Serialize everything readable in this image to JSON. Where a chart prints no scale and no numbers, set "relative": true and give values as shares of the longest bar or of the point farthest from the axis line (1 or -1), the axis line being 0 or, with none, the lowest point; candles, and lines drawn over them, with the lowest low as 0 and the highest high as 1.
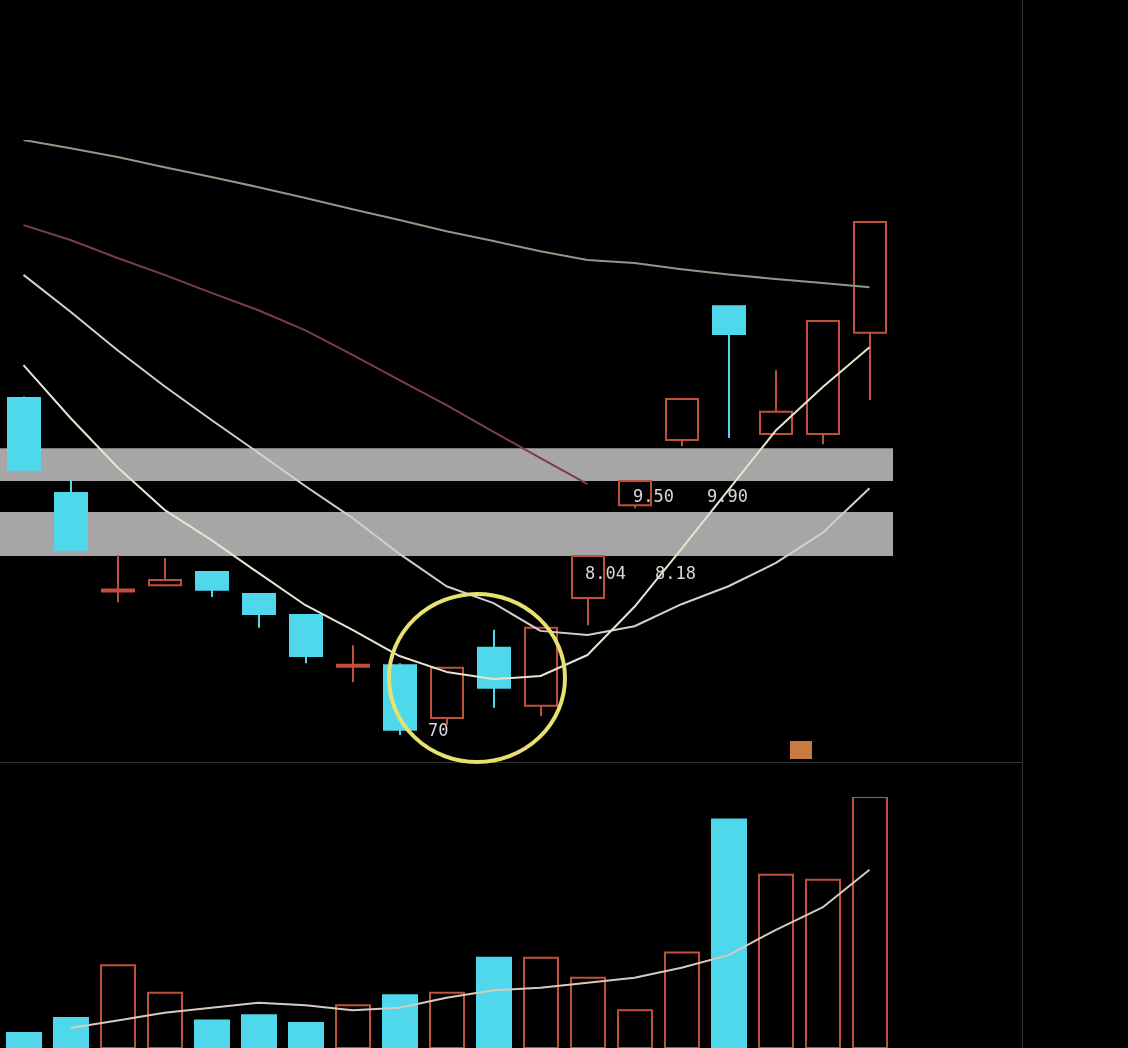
{
  "chart_data": [
    {
      "type": "candlestick",
      "relative": true,
      "categories": [
        null,
        null,
        null,
        null,
        null,
        null,
        null,
        null,
        null,
        null,
        null,
        null,
        null,
        null,
        null,
        null,
        null,
        null,
        null
      ],
      "ohlc": [
        [
          0.657,
          0.66,
          0.517,
          0.517
        ],
        [
          0.472,
          0.497,
          0.361,
          0.361
        ],
        [
          0.28,
          0.351,
          0.259,
          0.28
        ],
        [
          0.292,
          0.345,
          0.29,
          0.302
        ],
        [
          0.318,
          0.318,
          0.269,
          0.283
        ],
        [
          0.275,
          0.275,
          0.209,
          0.236
        ],
        [
          0.234,
          0.234,
          0.14,
          0.154
        ],
        [
          0.133,
          0.175,
          0.103,
          0.136
        ],
        [
          0.136,
          0.14,
          0,
          0.01
        ],
        [
          0.033,
          0.131,
          0.02,
          0.131
        ],
        [
          0.17,
          0.205,
          0.053,
          0.092
        ],
        [
          0.057,
          0.209,
          0.037,
          0.209
        ],
        [
          0.267,
          0.349,
          0.214,
          0.349
        ],
        [
          0.448,
          0.495,
          0.442,
          0.495
        ],
        [
          0.575,
          0.655,
          0.563,
          0.655
        ],
        [
          0.836,
          0.836,
          0.579,
          0.782
        ],
        [
          0.587,
          0.711,
          0.587,
          0.63
        ],
        [
          0.587,
          0.807,
          0.567,
          0.807
        ],
        [
          0.784,
          1,
          0.653,
          1
        ]
      ],
      "colors": [
        "#4fd8ec",
        "#4fd8ec",
        "#c0503a",
        "#c0503a",
        "#4fd8ec",
        "#4fd8ec",
        "#4fd8ec",
        "#c0503a",
        "#4fd8ec",
        "#c0503a",
        "#4fd8ec",
        "#c0503a",
        "#c0503a",
        "#c0503a",
        "#c0503a",
        "#4fd8ec",
        "#c0503a",
        "#c0503a",
        "#c0503a"
      ],
      "series": [
        {
          "type": "line",
          "color": "#8c9a84",
          "values": [
            1.16,
            1.144,
            1.127,
            1.107,
            1.088,
            1.068,
            1.047,
            1.025,
            1.004,
            0.982,
            0.963,
            0.943,
            0.926,
            0.92,
            0.908,
            0.898,
            0.889,
            0.881,
            0.873
          ]
        },
        {
          "type": "line",
          "color": "#7a3a5a",
          "values": [
            0.994,
            0.965,
            0.93,
            0.897,
            0.862,
            0.828,
            0.789,
            0.741,
            0.692,
            0.643,
            0.591,
            0.54,
            0.489,
            null,
            null,
            null,
            null,
            null,
            null
          ]
        },
        {
          "type": "line",
          "color": "#d0d0d0",
          "values": [
            0.897,
            0.825,
            0.75,
            0.68,
            0.614,
            0.55,
            0.485,
            0.423,
            0.353,
            0.29,
            0.257,
            0.203,
            0.195,
            0.212,
            0.255,
            0.29,
            0.335,
            0.394,
            0.481
          ]
        },
        {
          "type": "line",
          "color": "#e8e4d0",
          "values": [
            0.721,
            0.618,
            0.522,
            0.439,
            0.38,
            0.316,
            0.253,
            0.205,
            0.154,
            0.123,
            0.109,
            0.115,
            0.156,
            0.25,
            0.363,
            0.478,
            0.593,
            0.678,
            0.756
          ]
        }
      ],
      "bands": [
        {
          "axis": "y",
          "from": 0.495,
          "to": 0.559,
          "color": "#a6a6a6"
        },
        {
          "axis": "y",
          "from": 0.349,
          "to": 0.435,
          "color": "#a6a6a6"
        }
      ],
      "annotations": [
        "9.50",
        "9.90",
        "8.04",
        "8.18",
        "70"
      ]
    },
    {
      "type": "bar",
      "relative": true,
      "categories": [
        null,
        null,
        null,
        null,
        null,
        null,
        null,
        null,
        null,
        null,
        null,
        null,
        null,
        null,
        null,
        null,
        null,
        null,
        null
      ],
      "series": [
        {
          "type": "bar",
          "colors": [
            "#4fd8ec",
            "#4fd8ec",
            "#c0503a",
            "#c0503a",
            "#4fd8ec",
            "#4fd8ec",
            "#4fd8ec",
            "#c0503a",
            "#4fd8ec",
            "#c0503a",
            "#4fd8ec",
            "#c0503a",
            "#c0503a",
            "#c0503a",
            "#c0503a",
            "#4fd8ec",
            "#c0503a",
            "#c0503a",
            "#c0503a"
          ],
          "values": [
            0.06,
            0.12,
            0.33,
            0.22,
            0.11,
            0.13,
            0.1,
            0.17,
            0.21,
            0.22,
            0.36,
            0.36,
            0.28,
            0.15,
            0.38,
            0.91,
            0.69,
            0.67,
            1
          ]
        },
        {
          "type": "line",
          "color": "#d8c8c0",
          "values": [
            null,
            0.08,
            0.11,
            0.14,
            0.16,
            0.18,
            0.17,
            0.15,
            0.16,
            0.2,
            0.23,
            0.24,
            0.26,
            0.28,
            0.32,
            0.37,
            0.47,
            0.56,
            0.71
          ]
        }
      ]
    }
  ]
}
